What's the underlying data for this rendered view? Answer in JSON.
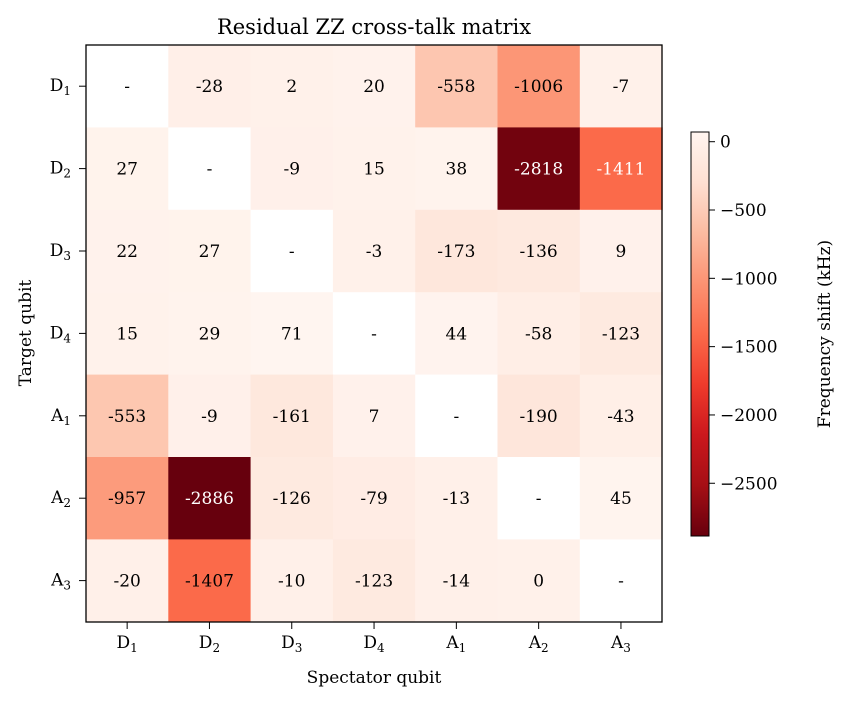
{
  "chart_data": {
    "type": "heatmap",
    "title": "Residual ZZ cross-talk matrix",
    "xlabel": "Spectator qubit",
    "ylabel": "Target qubit",
    "x_categories": [
      {
        "base": "D",
        "sub": "1"
      },
      {
        "base": "D",
        "sub": "2"
      },
      {
        "base": "D",
        "sub": "3"
      },
      {
        "base": "D",
        "sub": "4"
      },
      {
        "base": "A",
        "sub": "1"
      },
      {
        "base": "A",
        "sub": "2"
      },
      {
        "base": "A",
        "sub": "3"
      }
    ],
    "y_categories": [
      {
        "base": "D",
        "sub": "1"
      },
      {
        "base": "D",
        "sub": "2"
      },
      {
        "base": "D",
        "sub": "3"
      },
      {
        "base": "D",
        "sub": "4"
      },
      {
        "base": "A",
        "sub": "1"
      },
      {
        "base": "A",
        "sub": "2"
      },
      {
        "base": "A",
        "sub": "3"
      }
    ],
    "values": [
      [
        null,
        -28,
        2,
        20,
        -558,
        -1006,
        -7
      ],
      [
        27,
        null,
        -9,
        15,
        38,
        -2818,
        -1411
      ],
      [
        22,
        27,
        null,
        -3,
        -173,
        -136,
        9
      ],
      [
        15,
        29,
        71,
        null,
        44,
        -58,
        -123
      ],
      [
        -553,
        -9,
        -161,
        7,
        null,
        -190,
        -43
      ],
      [
        -957,
        -2886,
        -126,
        -79,
        -13,
        null,
        45
      ],
      [
        -20,
        -1407,
        -10,
        -123,
        -14,
        0,
        null
      ]
    ],
    "missing_label": "-",
    "colorbar": {
      "label": "Frequency shift (kHz)",
      "colormap": "Reds_r",
      "range": [
        -2886,
        71
      ],
      "ticks": [
        0,
        -500,
        -1000,
        -1500,
        -2000,
        -2500
      ],
      "tick_labels": [
        "0",
        "−500",
        "−1000",
        "−1500",
        "−2000",
        "−2500"
      ]
    }
  }
}
